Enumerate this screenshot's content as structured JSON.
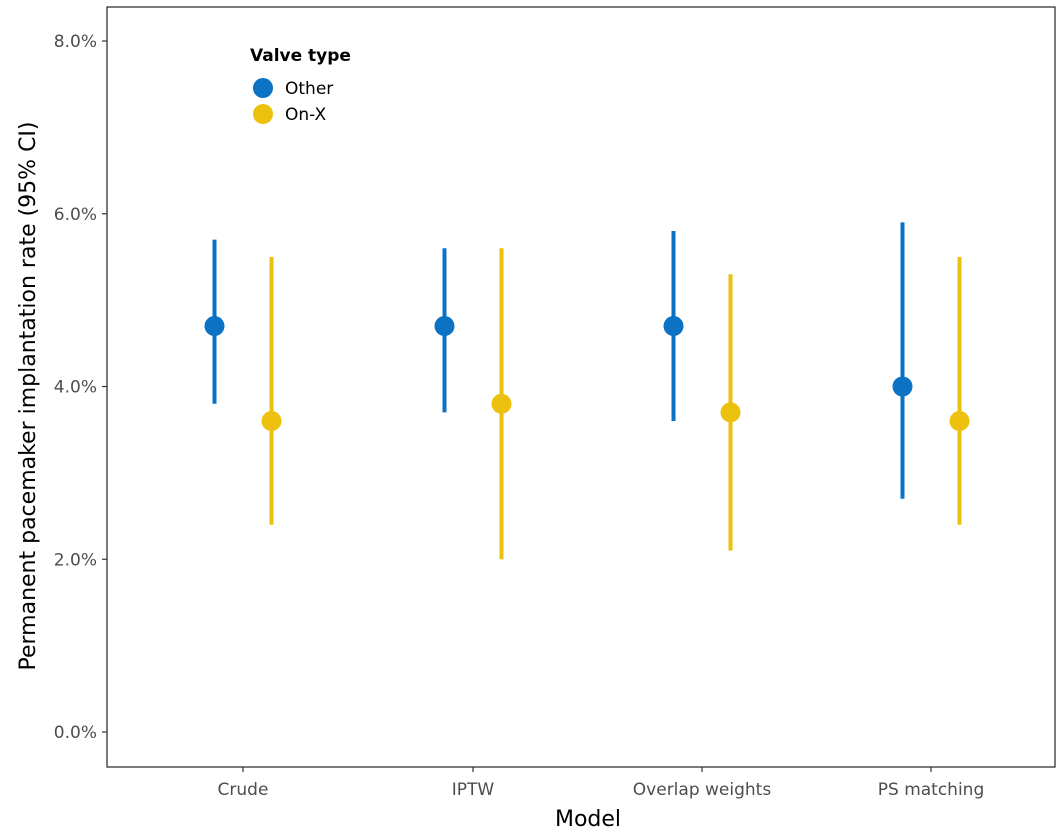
{
  "chart_data": {
    "type": "scatter",
    "subtype": "point-range",
    "xlabel": "Model",
    "ylabel": "Permanent pacemaker implantation rate (95% CI)",
    "categories": [
      "Crude",
      "IPTW",
      "Overlap weights",
      "PS matching"
    ],
    "ylim": [
      0,
      8
    ],
    "yticks": [
      0,
      2,
      4,
      6,
      8
    ],
    "ytick_labels": [
      "0.0%",
      "2.0%",
      "4.0%",
      "6.0%",
      "8.0%"
    ],
    "grid": false,
    "legend": {
      "title": "Valve type",
      "position": "top-left inside"
    },
    "series": [
      {
        "name": "Other",
        "color": "#0B72C4",
        "values": [
          4.7,
          4.7,
          4.7,
          4.0
        ],
        "lower": [
          3.8,
          3.7,
          3.6,
          2.7
        ],
        "upper": [
          5.7,
          5.6,
          5.8,
          5.9
        ]
      },
      {
        "name": "On-X",
        "color": "#ECC10E",
        "values": [
          3.6,
          3.8,
          3.7,
          3.6
        ],
        "lower": [
          2.4,
          2.0,
          2.1,
          2.4
        ],
        "upper": [
          5.5,
          5.6,
          5.3,
          5.5
        ]
      }
    ]
  }
}
